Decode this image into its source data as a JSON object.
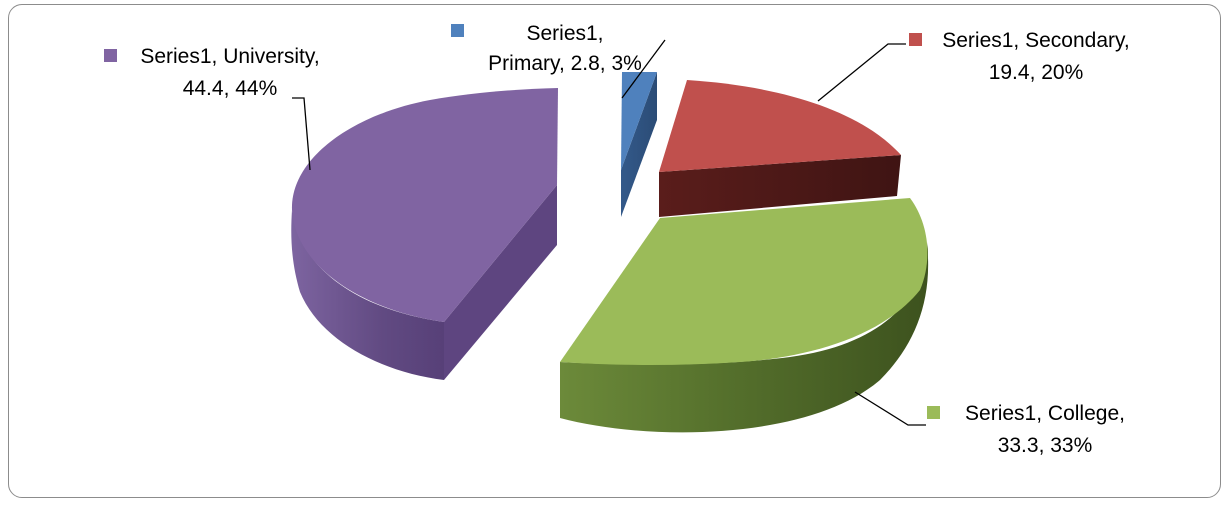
{
  "chart_data": {
    "type": "pie",
    "style": "3d-exploded",
    "series_name": "Series1",
    "title": "",
    "slices": [
      {
        "category": "Primary",
        "value": 2.8,
        "percent": "3%",
        "color": "#4f81bd"
      },
      {
        "category": "Secondary",
        "value": 19.4,
        "percent": "20%",
        "color": "#c0504d"
      },
      {
        "category": "College",
        "value": 33.3,
        "percent": "33%",
        "color": "#9bbb59"
      },
      {
        "category": "University",
        "value": 44.4,
        "percent": "44%",
        "color": "#8064a2"
      }
    ],
    "data_labels": [
      {
        "category": "Primary",
        "line1": "Series1,",
        "line2": "Primary, 2.8, 3%"
      },
      {
        "category": "Secondary",
        "line1": "Series1, Secondary,",
        "line2": "19.4, 20%"
      },
      {
        "category": "College",
        "line1": "Series1, College,",
        "line2": "33.3, 33%"
      },
      {
        "category": "University",
        "line1": "Series1, University,",
        "line2": "44.4, 44%"
      }
    ],
    "legend": "none",
    "grid": false
  }
}
